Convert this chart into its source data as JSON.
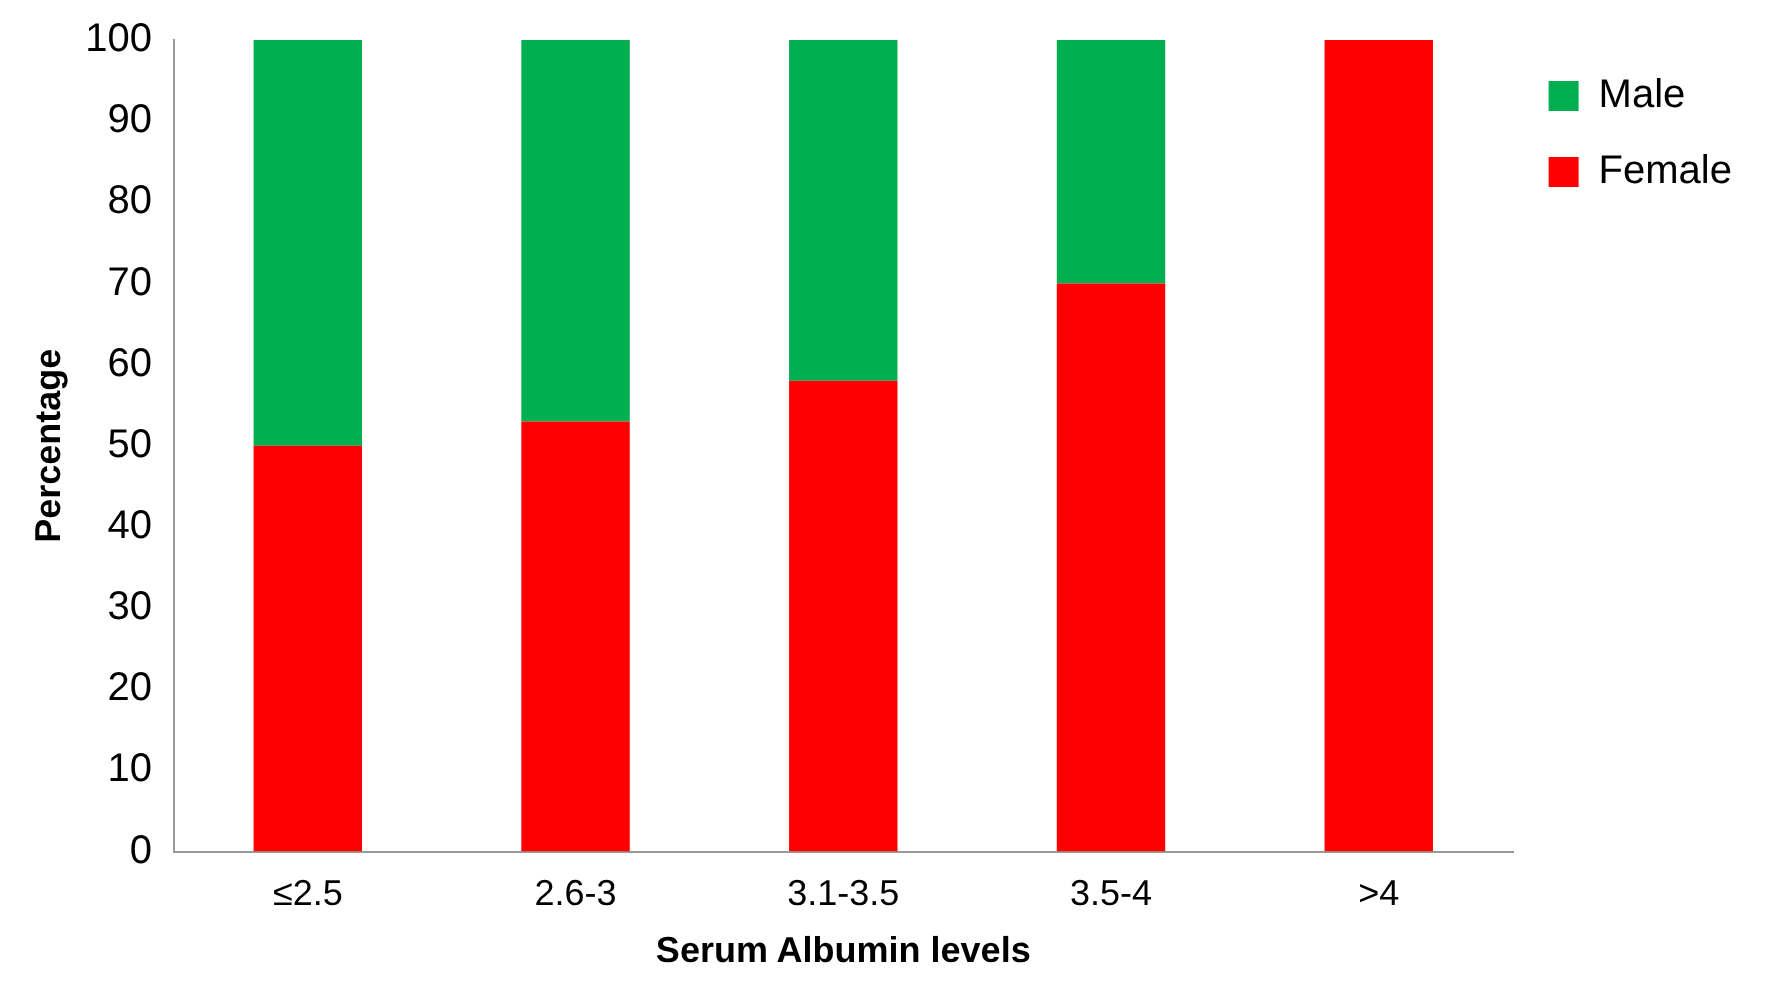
{
  "chart_data": {
    "type": "bar",
    "xlabel": "Serum Albumin levels",
    "ylabel": "Percentage",
    "categories": [
      "≤2.5",
      "2.6-3",
      "3.1-3.5",
      "3.5-4",
      ">4"
    ],
    "stacked": true,
    "series": [
      {
        "name": "Female",
        "color": "#ff0000",
        "values": [
          50,
          53,
          58,
          70,
          100
        ]
      },
      {
        "name": "Male",
        "color": "#00b050",
        "values": [
          50,
          47,
          42,
          30,
          0
        ]
      }
    ],
    "ylim": [
      0,
      100
    ],
    "yticks": [
      0,
      10,
      20,
      30,
      40,
      50,
      60,
      70,
      80,
      90,
      100
    ],
    "grid": false,
    "legend": "top right"
  }
}
